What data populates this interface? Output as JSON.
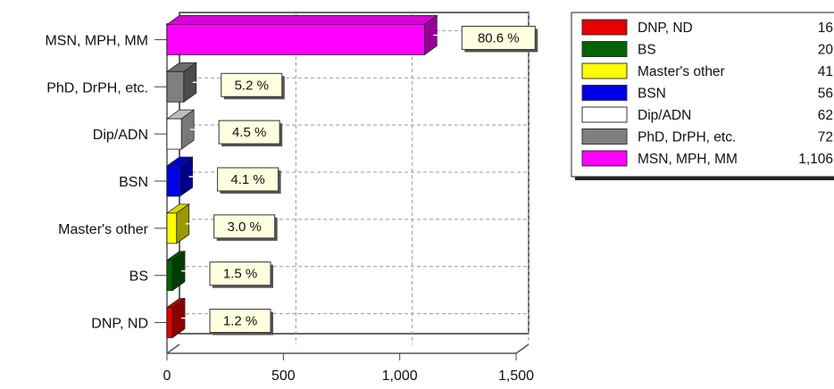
{
  "chart_data": {
    "type": "bar",
    "orientation": "horizontal",
    "categories": [
      "DNP, ND",
      "BS",
      "Master's other",
      "BSN",
      "Dip/ADN",
      "PhD, DrPH, etc.",
      "MSN, MPH, MM"
    ],
    "values": [
      16,
      20,
      41,
      56,
      62,
      72,
      1106
    ],
    "percent_labels": [
      "1.2 %",
      "1.5 %",
      "3.0 %",
      "4.1 %",
      "4.5 %",
      "5.2 %",
      "80.6 %"
    ],
    "colors": [
      "#e60000",
      "#006400",
      "#ffff00",
      "#0000e6",
      "#ffffff",
      "#7f7f7f",
      "#ff00ff"
    ],
    "xlim": [
      0,
      1500
    ],
    "xticks": [
      0,
      500,
      1000,
      1500
    ],
    "xtick_labels": [
      "0",
      "500",
      "1,000",
      "1,500"
    ],
    "grid": true,
    "legend_position": "top-right",
    "legend": [
      {
        "label": "DNP, ND",
        "value": "16",
        "color": "#e60000"
      },
      {
        "label": "BS",
        "value": "20",
        "color": "#006400"
      },
      {
        "label": "Master's other",
        "value": "41",
        "color": "#ffff00"
      },
      {
        "label": "BSN",
        "value": "56",
        "color": "#0000e6"
      },
      {
        "label": "Dip/ADN",
        "value": "62",
        "color": "#ffffff"
      },
      {
        "label": "PhD, DrPH, etc.",
        "value": "72",
        "color": "#7f7f7f"
      },
      {
        "label": "MSN, MPH, MM",
        "value": "1,106",
        "color": "#ff00ff"
      }
    ]
  }
}
